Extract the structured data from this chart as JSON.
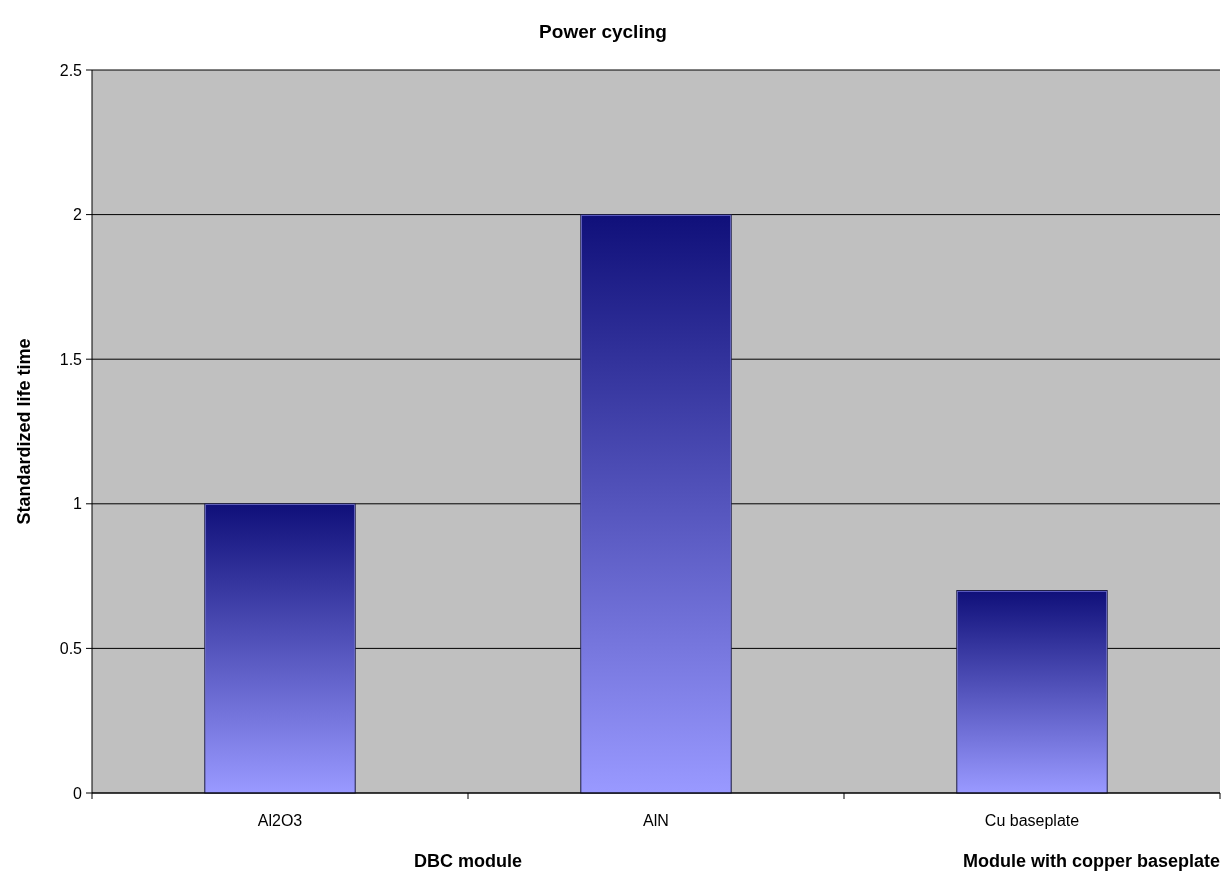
{
  "chart_data": {
    "type": "bar",
    "title": "Power cycling",
    "ylabel": "Standardized life time",
    "categories": [
      "Al2O3",
      "AlN",
      "Cu baseplate"
    ],
    "values": [
      1,
      2,
      0.7
    ],
    "color": "#9999ff",
    "ylim": [
      0,
      2.5
    ],
    "yticks": [
      0,
      0.5,
      1,
      1.5,
      2,
      2.5
    ],
    "grid": "y",
    "annotations": [
      "DBC module",
      "Module with copper baseplate"
    ]
  }
}
